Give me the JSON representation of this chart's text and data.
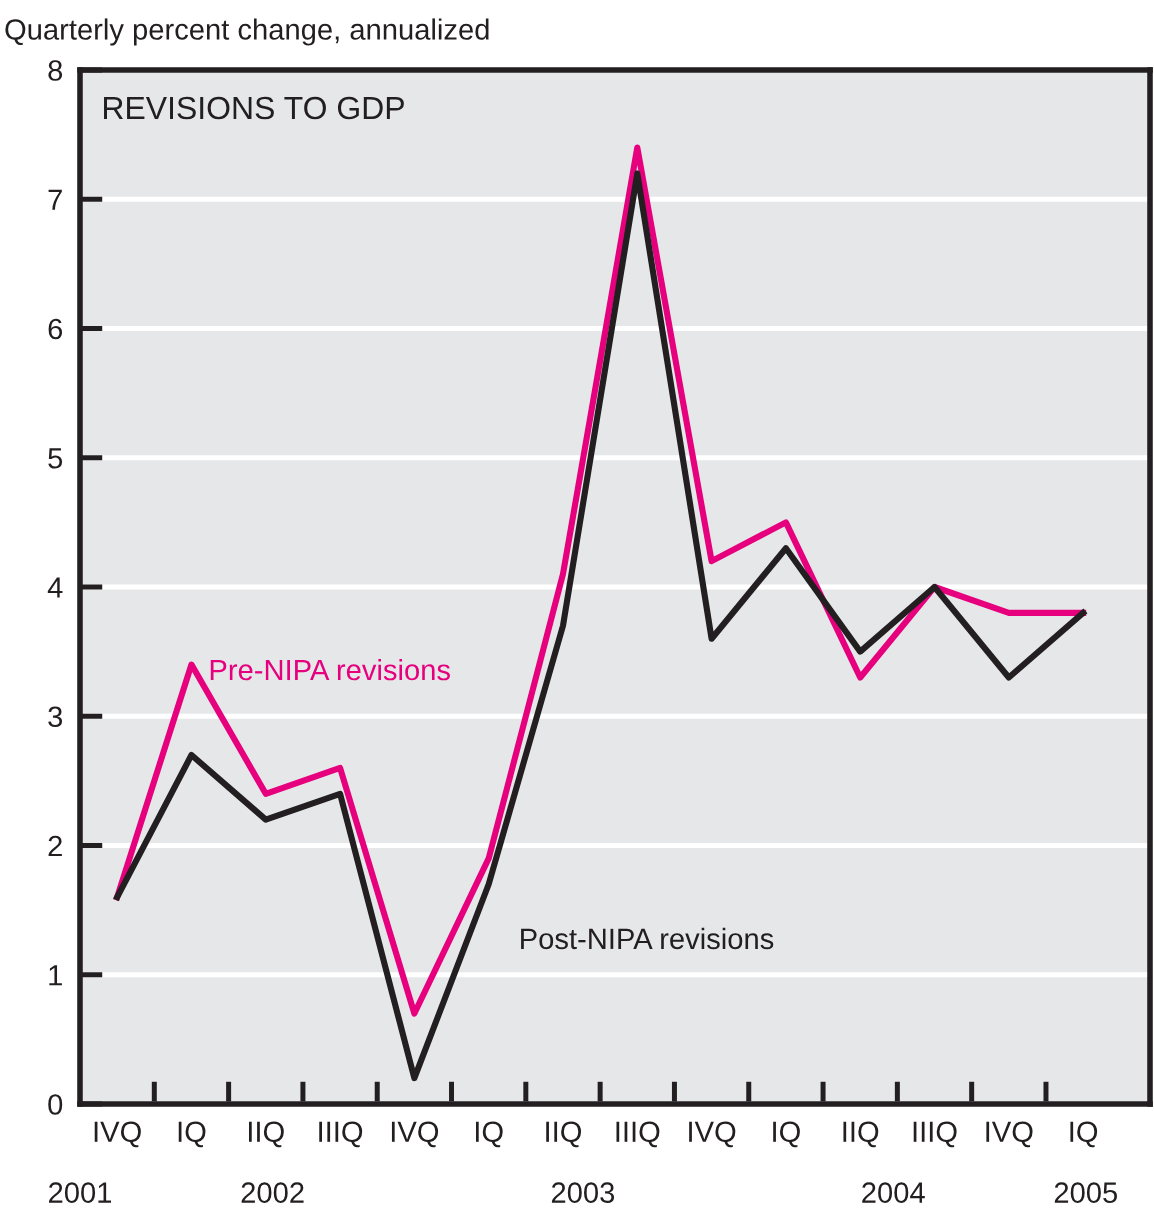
{
  "chart_data": {
    "type": "line",
    "title": "REVISIONS TO GDP",
    "ylabel": "Quarterly percent change, annualized",
    "categories": [
      "IVQ",
      "IQ",
      "IIQ",
      "IIIQ",
      "IVQ",
      "IQ",
      "IIQ",
      "IIIQ",
      "IVQ",
      "IQ",
      "IIQ",
      "IIIQ",
      "IVQ",
      "IQ"
    ],
    "series": [
      {
        "name": "Pre-NIPA revisions",
        "color": "#e6007e",
        "values": [
          1.6,
          3.4,
          2.4,
          2.6,
          0.7,
          1.9,
          4.1,
          7.4,
          4.2,
          4.5,
          3.3,
          4.0,
          3.8,
          3.8
        ]
      },
      {
        "name": "Post-NIPA revisions",
        "color": "#231f20",
        "values": [
          1.6,
          2.7,
          2.2,
          2.4,
          0.2,
          1.7,
          3.7,
          7.2,
          3.6,
          4.3,
          3.5,
          4.0,
          3.3,
          3.8
        ]
      }
    ],
    "annotations": [
      "2001",
      "2002",
      "2003",
      "2004",
      "2005"
    ],
    "ylim": [
      0,
      8
    ],
    "yticks": [
      0,
      1,
      2,
      3,
      4,
      5,
      6,
      7,
      8
    ],
    "grid": "y",
    "legend": false,
    "marker": "none",
    "line_style": "solid"
  }
}
